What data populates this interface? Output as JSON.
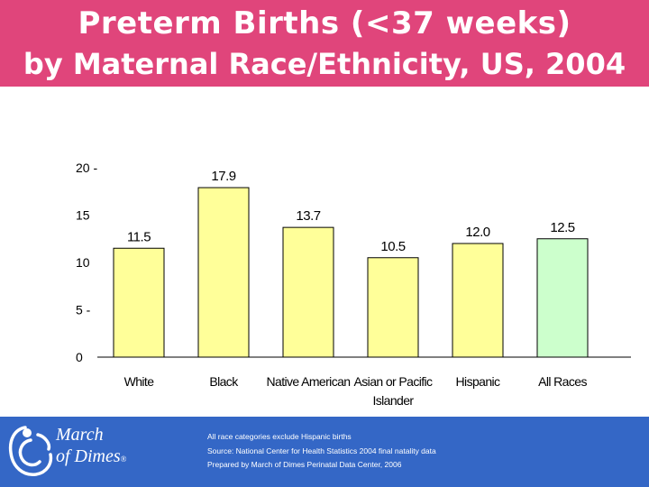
{
  "header": {
    "title_line1": "Preterm Births (<37 weeks)",
    "title_line2": "by Maternal Race/Ethnicity, US, 2004",
    "background_color": "#e0457b"
  },
  "chart_data": {
    "type": "bar",
    "categories": [
      "White",
      "Black",
      "Native American",
      "Asian or Pacific Islander",
      "Hispanic",
      "All Races"
    ],
    "category_label_lines": [
      [
        "White"
      ],
      [
        "Black"
      ],
      [
        "Native American"
      ],
      [
        "Asian or Pacific",
        "Islander"
      ],
      [
        "Hispanic"
      ],
      [
        "All Races"
      ]
    ],
    "values": [
      11.5,
      17.9,
      13.7,
      10.5,
      12.0,
      12.5
    ],
    "value_labels": [
      "11.5",
      "17.9",
      "13.7",
      "10.5",
      "12.0",
      "12.5"
    ],
    "bar_colors": [
      "#ffff99",
      "#ffff99",
      "#ffff99",
      "#ffff99",
      "#ffff99",
      "#ccffcc"
    ],
    "yticks": [
      0,
      5,
      10,
      15,
      20
    ],
    "ytick_labels": [
      "0",
      "5 -",
      "10",
      "15",
      "20 -"
    ],
    "ylim": [
      0,
      20
    ],
    "title": "",
    "xlabel": "",
    "ylabel": "",
    "grid": false
  },
  "footer": {
    "logo_line1": "March",
    "logo_line2": "of Dimes",
    "logo_mark": "®",
    "notes": [
      "All race categories exclude Hispanic births",
      "Source: National Center for Health Statistics 2004 final natality data",
      "Prepared by March of Dimes Perinatal Data Center, 2006"
    ],
    "background_color": "#3467c6"
  }
}
